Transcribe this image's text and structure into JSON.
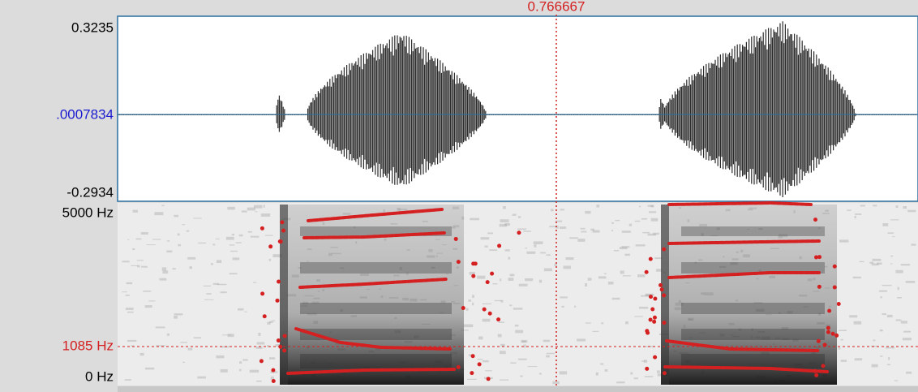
{
  "cursor": {
    "time_label": "0.766667"
  },
  "waveform": {
    "max_label": "0.3235",
    "zero_label": ".0007834",
    "min_label": "-0.2934"
  },
  "spectrogram": {
    "max_freq_label": "5000 Hz",
    "cursor_freq_label": "1085 Hz",
    "min_freq_label": "0 Hz"
  }
}
